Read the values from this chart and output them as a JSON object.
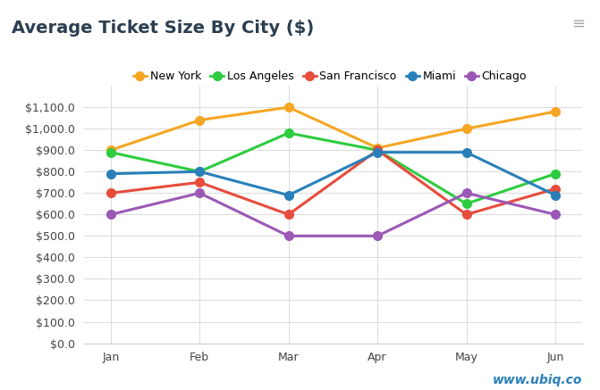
{
  "title": "Average Ticket Size By City ($)",
  "months": [
    "Jan",
    "Feb",
    "Mar",
    "Apr",
    "May",
    "Jun"
  ],
  "series": [
    {
      "name": "New York",
      "color": "#f5a623",
      "values": [
        900,
        1040,
        1100,
        910,
        1000,
        1080
      ]
    },
    {
      "name": "Los Angeles",
      "color": "#2ecc40",
      "values": [
        890,
        800,
        980,
        900,
        650,
        790
      ]
    },
    {
      "name": "San Francisco",
      "color": "#e74c3c",
      "values": [
        700,
        750,
        600,
        900,
        600,
        720
      ]
    },
    {
      "name": "Miami",
      "color": "#2980b9",
      "values": [
        790,
        800,
        690,
        890,
        890,
        690
      ]
    },
    {
      "name": "Chicago",
      "color": "#9b59b6",
      "values": [
        600,
        700,
        500,
        500,
        700,
        600
      ]
    }
  ],
  "ylim": [
    0,
    1200
  ],
  "yticks": [
    0,
    100,
    200,
    300,
    400,
    500,
    600,
    700,
    800,
    900,
    1000,
    1100
  ],
  "background_color": "#ffffff",
  "grid_color": "#dddddd",
  "title_color": "#2c3e50",
  "watermark": "www.ubiq.co",
  "watermark_color": "#2980b9",
  "marker_size": 7,
  "line_width": 2.2
}
